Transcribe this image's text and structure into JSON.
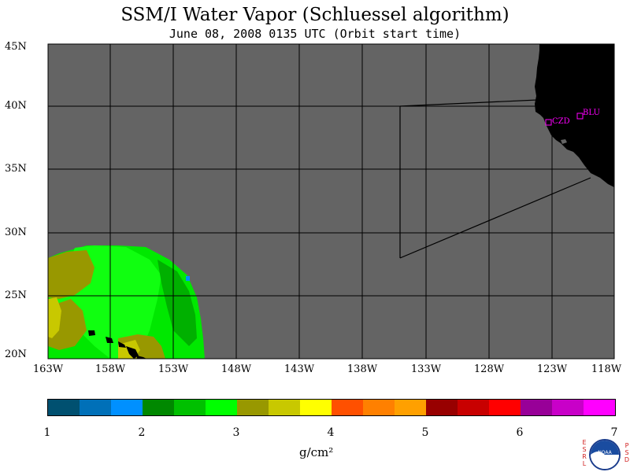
{
  "title": "SSM/I Water Vapor (Schluessel algorithm)",
  "subtitle": "June 08, 2008  0135 UTC  (Orbit start time)",
  "lat_labels": [
    "45N",
    "40N",
    "35N",
    "30N",
    "25N",
    "20N"
  ],
  "lon_labels": [
    "163W",
    "158W",
    "153W",
    "148W",
    "143W",
    "138W",
    "133W",
    "128W",
    "123W",
    "118W"
  ],
  "stations": [
    {
      "code": "CZD",
      "lat": 38.6,
      "lon": -123.2
    },
    {
      "code": "BLU",
      "lat": 39.2,
      "lon": -120.7
    }
  ],
  "colorbar": {
    "colors": [
      "#005070",
      "#0070b8",
      "#0090ff",
      "#008800",
      "#00c000",
      "#00ff00",
      "#989800",
      "#c8c800",
      "#ffff00",
      "#ff5000",
      "#ff8000",
      "#ffa000",
      "#980000",
      "#c80000",
      "#ff0000",
      "#980098",
      "#c800c8",
      "#ff00ff"
    ],
    "ticks": [
      "1",
      "2",
      "3",
      "4",
      "5",
      "6",
      "7"
    ],
    "unit": "g/cm²"
  },
  "logo": {
    "left_text": "ESRL",
    "right_text": "PSD",
    "name": "NOAA"
  },
  "colors": {
    "ocean_no_data": "#646464",
    "land": "#000000",
    "station_marker": "#ff00ff"
  }
}
